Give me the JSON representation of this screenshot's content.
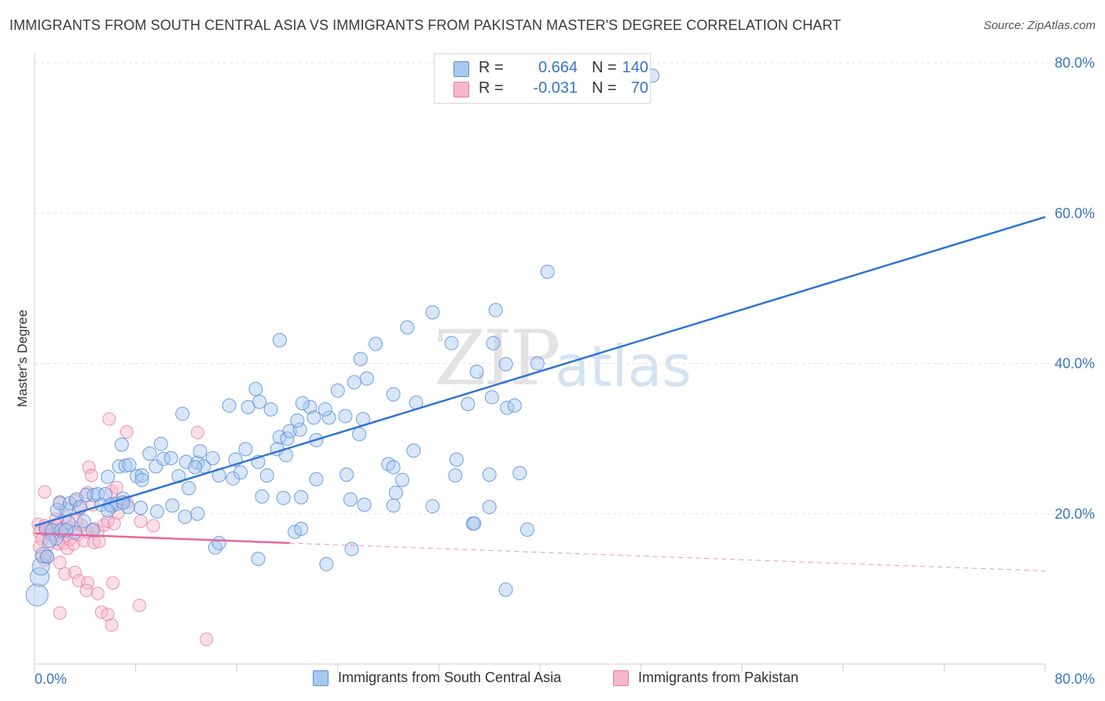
{
  "title": "IMMIGRANTS FROM SOUTH CENTRAL ASIA VS IMMIGRANTS FROM PAKISTAN MASTER'S DEGREE CORRELATION CHART",
  "source": "Source: ZipAtlas.com",
  "watermark": {
    "zip": "ZIP",
    "atlas": "atlas"
  },
  "legend": {
    "rows": [
      {
        "r_label": "R =",
        "r_value": "0.664",
        "n_label": "N =",
        "n_value": "140"
      },
      {
        "r_label": "R =",
        "r_value": "-0.031",
        "n_label": "N =",
        "n_value": "70"
      }
    ]
  },
  "colors": {
    "blue_fill": "#a9c8f0",
    "blue_stroke": "#5b8fd6",
    "blue_line": "#2e74d4",
    "pink_fill": "#f6b8cb",
    "pink_stroke": "#e87aa0",
    "pink_line": "#e8679a",
    "grid": "#e3e3e3",
    "axis_label": "#3a75c4"
  },
  "chart_data": {
    "type": "scatter",
    "title": "IMMIGRANTS FROM SOUTH CENTRAL ASIA VS IMMIGRANTS FROM PAKISTAN MASTER'S DEGREE CORRELATION CHART",
    "xlabel": "",
    "ylabel": "Master's Degree",
    "xlim": [
      0,
      80
    ],
    "ylim": [
      0,
      80
    ],
    "x_tick_labels": [
      "0.0%",
      "80.0%"
    ],
    "y_ticks": [
      20,
      40,
      60,
      80
    ],
    "y_tick_labels": [
      "20.0%",
      "40.0%",
      "60.0%",
      "80.0%"
    ],
    "grid": true,
    "legend_position": "top-center",
    "series": [
      {
        "name": "Immigrants from South Central Asia",
        "color": "blue",
        "R": 0.664,
        "N": 140,
        "trend": {
          "x": [
            0,
            80
          ],
          "y": [
            18.4,
            59.5
          ],
          "dashed_to": null
        },
        "points": [
          [
            0.2,
            9.2
          ],
          [
            0.4,
            11.6
          ],
          [
            0.5,
            13.0
          ],
          [
            0.7,
            14.5
          ],
          [
            1.0,
            14.3
          ],
          [
            0.9,
            18.0
          ],
          [
            1.4,
            17.8
          ],
          [
            1.7,
            16.7
          ],
          [
            2.1,
            17.8
          ],
          [
            2.7,
            18.8
          ],
          [
            1.8,
            20.5
          ],
          [
            2.5,
            20.6
          ],
          [
            2.0,
            21.4
          ],
          [
            2.8,
            21.4
          ],
          [
            3.3,
            21.9
          ],
          [
            3.6,
            20.9
          ],
          [
            4.1,
            22.5
          ],
          [
            4.7,
            22.5
          ],
          [
            5.0,
            22.6
          ],
          [
            5.6,
            22.6
          ],
          [
            5.3,
            21.2
          ],
          [
            6.1,
            21.0
          ],
          [
            6.0,
            21.2
          ],
          [
            6.5,
            21.3
          ],
          [
            7.0,
            22.0
          ],
          [
            7.4,
            20.9
          ],
          [
            5.8,
            20.4
          ],
          [
            7.0,
            21.5
          ],
          [
            5.8,
            24.9
          ],
          [
            6.7,
            26.3
          ],
          [
            7.2,
            26.4
          ],
          [
            8.1,
            25.0
          ],
          [
            8.5,
            25.1
          ],
          [
            7.5,
            26.5
          ],
          [
            9.6,
            26.3
          ],
          [
            10.2,
            27.3
          ],
          [
            10.8,
            27.4
          ],
          [
            11.4,
            25.0
          ],
          [
            12.0,
            26.9
          ],
          [
            12.9,
            26.8
          ],
          [
            13.4,
            26.3
          ],
          [
            12.7,
            26.2
          ],
          [
            14.1,
            27.4
          ],
          [
            8.5,
            24.5
          ],
          [
            9.1,
            28.0
          ],
          [
            10.0,
            29.3
          ],
          [
            6.9,
            29.2
          ],
          [
            13.1,
            28.3
          ],
          [
            14.6,
            25.1
          ],
          [
            15.7,
            24.7
          ],
          [
            16.3,
            25.5
          ],
          [
            15.9,
            27.2
          ],
          [
            16.7,
            28.6
          ],
          [
            17.7,
            26.9
          ],
          [
            18.4,
            25.1
          ],
          [
            19.4,
            30.2
          ],
          [
            19.2,
            28.6
          ],
          [
            20.0,
            30.0
          ],
          [
            19.9,
            27.8
          ],
          [
            20.2,
            31.0
          ],
          [
            21.0,
            31.2
          ],
          [
            22.3,
            29.8
          ],
          [
            21.8,
            34.2
          ],
          [
            22.1,
            32.8
          ],
          [
            23.3,
            32.8
          ],
          [
            24.6,
            33.0
          ],
          [
            24.0,
            36.4
          ],
          [
            25.7,
            30.6
          ],
          [
            26.0,
            32.6
          ],
          [
            25.3,
            37.5
          ],
          [
            26.3,
            38.0
          ],
          [
            25.8,
            40.6
          ],
          [
            27.0,
            42.6
          ],
          [
            24.7,
            25.2
          ],
          [
            25.0,
            21.9
          ],
          [
            26.1,
            21.2
          ],
          [
            28.0,
            26.6
          ],
          [
            28.4,
            21.1
          ],
          [
            28.6,
            22.8
          ],
          [
            30.2,
            34.8
          ],
          [
            30.0,
            28.4
          ],
          [
            31.5,
            21.0
          ],
          [
            33.0,
            42.7
          ],
          [
            31.5,
            46.8
          ],
          [
            33.4,
            27.2
          ],
          [
            34.3,
            34.6
          ],
          [
            35.0,
            38.9
          ],
          [
            36.5,
            47.1
          ],
          [
            36.3,
            42.7
          ],
          [
            36.0,
            20.9
          ],
          [
            37.3,
            39.9
          ],
          [
            36.2,
            35.5
          ],
          [
            37.4,
            34.1
          ],
          [
            38.0,
            34.4
          ],
          [
            39.8,
            40.0
          ],
          [
            36.0,
            25.2
          ],
          [
            38.4,
            25.4
          ],
          [
            40.6,
            52.2
          ],
          [
            39.0,
            17.9
          ],
          [
            29.5,
            44.8
          ],
          [
            28.4,
            35.9
          ],
          [
            11.7,
            33.3
          ],
          [
            12.2,
            23.4
          ],
          [
            15.4,
            34.4
          ],
          [
            17.5,
            36.6
          ],
          [
            16.9,
            34.2
          ],
          [
            17.8,
            34.9
          ],
          [
            19.4,
            43.1
          ],
          [
            21.2,
            34.7
          ],
          [
            18.7,
            33.9
          ],
          [
            20.8,
            32.4
          ],
          [
            23.0,
            33.9
          ],
          [
            22.3,
            24.6
          ],
          [
            18.0,
            22.3
          ],
          [
            19.7,
            22.1
          ],
          [
            21.1,
            22.2
          ],
          [
            9.7,
            20.3
          ],
          [
            10.9,
            21.1
          ],
          [
            11.9,
            19.6
          ],
          [
            12.9,
            20.0
          ],
          [
            8.4,
            20.8
          ],
          [
            3.9,
            19.0
          ],
          [
            4.6,
            17.8
          ],
          [
            3.2,
            17.5
          ],
          [
            2.5,
            17.8
          ],
          [
            1.2,
            16.4
          ],
          [
            14.3,
            15.5
          ],
          [
            14.6,
            16.1
          ],
          [
            17.7,
            14.0
          ],
          [
            20.6,
            17.6
          ],
          [
            21.1,
            18.0
          ],
          [
            23.1,
            13.3
          ],
          [
            25.1,
            15.3
          ],
          [
            37.3,
            9.9
          ],
          [
            48.9,
            78.3
          ],
          [
            34.7,
            18.7
          ],
          [
            34.8,
            18.7
          ],
          [
            29.1,
            24.5
          ],
          [
            33.3,
            25.1
          ],
          [
            28.4,
            26.2
          ]
        ]
      },
      {
        "name": "Immigrants from Pakistan",
        "color": "pink",
        "R": -0.031,
        "N": 70,
        "trend": {
          "x": [
            0,
            20.2
          ],
          "y": [
            17.4,
            16.1
          ],
          "dashed_to": [
            80,
            12.4
          ]
        },
        "points": [
          [
            0.3,
            18.6
          ],
          [
            0.4,
            17.5
          ],
          [
            0.6,
            16.6
          ],
          [
            0.8,
            18.4
          ],
          [
            0.9,
            17.8
          ],
          [
            1.2,
            18.0
          ],
          [
            1.4,
            17.1
          ],
          [
            1.5,
            18.2
          ],
          [
            1.7,
            19.3
          ],
          [
            1.9,
            18.6
          ],
          [
            2.1,
            17.9
          ],
          [
            2.3,
            18.1
          ],
          [
            2.5,
            17.1
          ],
          [
            2.7,
            18.2
          ],
          [
            0.4,
            15.6
          ],
          [
            0.6,
            14.3
          ],
          [
            0.8,
            13.8
          ],
          [
            1.1,
            15.9
          ],
          [
            1.4,
            17.3
          ],
          [
            1.9,
            16.0
          ],
          [
            2.3,
            16.1
          ],
          [
            2.6,
            15.4
          ],
          [
            2.8,
            16.6
          ],
          [
            3.1,
            16.0
          ],
          [
            3.4,
            17.2
          ],
          [
            3.9,
            16.4
          ],
          [
            4.2,
            17.6
          ],
          [
            4.7,
            18.0
          ],
          [
            5.0,
            17.7
          ],
          [
            5.5,
            18.5
          ],
          [
            5.8,
            19.0
          ],
          [
            6.3,
            18.7
          ],
          [
            6.6,
            20.1
          ],
          [
            6.9,
            21.5
          ],
          [
            7.3,
            21.5
          ],
          [
            4.7,
            16.2
          ],
          [
            5.1,
            16.3
          ],
          [
            3.7,
            18.5
          ],
          [
            3.3,
            19.0
          ],
          [
            2.4,
            19.6
          ],
          [
            3.2,
            21.7
          ],
          [
            3.6,
            20.7
          ],
          [
            4.2,
            22.8
          ],
          [
            4.6,
            21.2
          ],
          [
            0.8,
            22.9
          ],
          [
            2.0,
            21.6
          ],
          [
            4.3,
            26.2
          ],
          [
            4.5,
            25.1
          ],
          [
            5.9,
            32.6
          ],
          [
            7.3,
            30.9
          ],
          [
            6.1,
            23.0
          ],
          [
            6.5,
            23.5
          ],
          [
            8.4,
            19.0
          ],
          [
            9.4,
            18.4
          ],
          [
            12.9,
            30.8
          ],
          [
            1.0,
            14.2
          ],
          [
            2.0,
            13.5
          ],
          [
            2.4,
            12.0
          ],
          [
            3.2,
            12.2
          ],
          [
            3.5,
            11.1
          ],
          [
            4.2,
            10.8
          ],
          [
            4.1,
            9.8
          ],
          [
            5.0,
            9.4
          ],
          [
            5.3,
            6.9
          ],
          [
            5.8,
            6.6
          ],
          [
            6.1,
            5.2
          ],
          [
            6.2,
            10.8
          ],
          [
            8.3,
            7.8
          ],
          [
            2.0,
            6.8
          ],
          [
            13.6,
            3.3
          ]
        ]
      }
    ]
  },
  "bottom_legend": [
    {
      "label": "Immigrants from South Central Asia"
    },
    {
      "label": "Immigrants from Pakistan"
    }
  ]
}
